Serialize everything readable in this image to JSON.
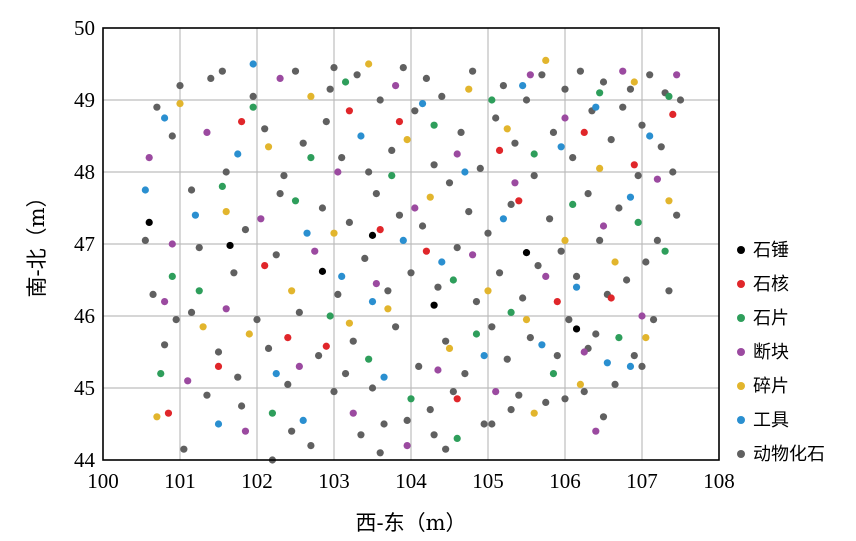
{
  "chart_data": {
    "type": "scatter",
    "title": "",
    "xlabel": "西-东（m）",
    "ylabel": "南-北（m）",
    "xlim": [
      100,
      108
    ],
    "ylim": [
      44,
      50
    ],
    "x_ticks": [
      "100",
      "101",
      "102",
      "103",
      "104",
      "105",
      "106",
      "107",
      "108"
    ],
    "y_ticks": [
      "44",
      "45",
      "46",
      "47",
      "48",
      "49",
      "50"
    ],
    "grid": true,
    "legend_position": "right",
    "series": [
      {
        "name": "石锤",
        "color": "#000000",
        "points": [
          [
            100.6,
            47.3
          ],
          [
            101.65,
            46.98
          ],
          [
            102.85,
            46.62
          ],
          [
            103.5,
            47.12
          ],
          [
            104.3,
            46.15
          ],
          [
            105.5,
            46.88
          ],
          [
            106.15,
            45.82
          ]
        ]
      },
      {
        "name": "石核",
        "color": "#e0262a",
        "points": [
          [
            100.85,
            44.65
          ],
          [
            101.5,
            45.3
          ],
          [
            101.8,
            48.7
          ],
          [
            102.1,
            46.7
          ],
          [
            102.4,
            45.7
          ],
          [
            102.9,
            45.58
          ],
          [
            103.2,
            48.85
          ],
          [
            103.6,
            47.2
          ],
          [
            103.85,
            48.7
          ],
          [
            104.2,
            46.9
          ],
          [
            104.6,
            44.85
          ],
          [
            105.15,
            48.3
          ],
          [
            105.4,
            47.6
          ],
          [
            105.9,
            46.2
          ],
          [
            106.25,
            48.55
          ],
          [
            106.6,
            46.25
          ],
          [
            106.9,
            48.1
          ],
          [
            107.4,
            48.8
          ]
        ]
      },
      {
        "name": "石片",
        "color": "#2e9e5b",
        "points": [
          [
            100.75,
            45.2
          ],
          [
            100.9,
            46.55
          ],
          [
            101.25,
            46.35
          ],
          [
            101.55,
            47.8
          ],
          [
            101.95,
            48.9
          ],
          [
            102.2,
            44.65
          ],
          [
            102.5,
            47.6
          ],
          [
            102.95,
            46.0
          ],
          [
            103.15,
            49.25
          ],
          [
            103.45,
            45.4
          ],
          [
            103.75,
            47.95
          ],
          [
            104.0,
            44.85
          ],
          [
            104.3,
            48.65
          ],
          [
            104.55,
            46.5
          ],
          [
            104.85,
            45.75
          ],
          [
            105.05,
            49.0
          ],
          [
            105.3,
            46.05
          ],
          [
            105.6,
            48.25
          ],
          [
            105.85,
            45.2
          ],
          [
            106.1,
            47.55
          ],
          [
            106.45,
            49.1
          ],
          [
            106.7,
            45.7
          ],
          [
            106.95,
            47.3
          ],
          [
            107.3,
            46.9
          ],
          [
            107.35,
            49.05
          ],
          [
            104.6,
            44.3
          ],
          [
            102.7,
            48.2
          ]
        ]
      },
      {
        "name": "断块",
        "color": "#9b4aa0",
        "points": [
          [
            100.6,
            48.2
          ],
          [
            100.9,
            47.0
          ],
          [
            101.1,
            45.1
          ],
          [
            101.35,
            48.55
          ],
          [
            101.6,
            46.1
          ],
          [
            101.85,
            44.4
          ],
          [
            102.05,
            47.35
          ],
          [
            102.3,
            49.3
          ],
          [
            102.55,
            45.3
          ],
          [
            102.75,
            46.9
          ],
          [
            103.05,
            48.0
          ],
          [
            103.25,
            44.65
          ],
          [
            103.55,
            46.45
          ],
          [
            103.8,
            49.2
          ],
          [
            104.05,
            47.5
          ],
          [
            104.35,
            45.25
          ],
          [
            104.6,
            48.25
          ],
          [
            104.8,
            46.85
          ],
          [
            105.1,
            44.95
          ],
          [
            105.35,
            47.85
          ],
          [
            105.55,
            49.35
          ],
          [
            105.75,
            46.55
          ],
          [
            106.0,
            48.75
          ],
          [
            106.25,
            45.5
          ],
          [
            106.5,
            47.25
          ],
          [
            106.75,
            49.4
          ],
          [
            107.0,
            46.0
          ],
          [
            107.2,
            47.9
          ],
          [
            107.45,
            49.35
          ],
          [
            106.4,
            44.4
          ],
          [
            103.95,
            44.2
          ],
          [
            100.8,
            46.2
          ]
        ]
      },
      {
        "name": "碎片",
        "color": "#e2b52d",
        "points": [
          [
            100.7,
            44.6
          ],
          [
            101.0,
            48.95
          ],
          [
            101.3,
            45.85
          ],
          [
            101.6,
            47.45
          ],
          [
            101.9,
            45.75
          ],
          [
            102.15,
            48.35
          ],
          [
            102.45,
            46.35
          ],
          [
            102.7,
            49.05
          ],
          [
            103.0,
            47.15
          ],
          [
            103.2,
            45.9
          ],
          [
            103.45,
            49.5
          ],
          [
            103.7,
            46.1
          ],
          [
            103.95,
            48.45
          ],
          [
            104.25,
            47.65
          ],
          [
            104.5,
            45.55
          ],
          [
            104.75,
            49.15
          ],
          [
            105.0,
            46.35
          ],
          [
            105.25,
            48.6
          ],
          [
            105.5,
            45.95
          ],
          [
            105.75,
            49.55
          ],
          [
            106.0,
            47.05
          ],
          [
            106.2,
            45.05
          ],
          [
            106.45,
            48.05
          ],
          [
            106.65,
            46.75
          ],
          [
            106.9,
            49.25
          ],
          [
            107.05,
            45.7
          ],
          [
            107.35,
            47.6
          ],
          [
            105.6,
            44.65
          ]
        ]
      },
      {
        "name": "工具",
        "color": "#2a8fd0",
        "points": [
          [
            100.55,
            47.75
          ],
          [
            100.8,
            48.75
          ],
          [
            101.2,
            47.4
          ],
          [
            101.5,
            44.5
          ],
          [
            101.75,
            48.25
          ],
          [
            101.95,
            49.5
          ],
          [
            102.25,
            45.2
          ],
          [
            102.6,
            44.55
          ],
          [
            102.65,
            47.15
          ],
          [
            103.1,
            46.55
          ],
          [
            103.35,
            48.5
          ],
          [
            103.65,
            45.15
          ],
          [
            103.9,
            47.05
          ],
          [
            104.15,
            48.95
          ],
          [
            104.4,
            46.75
          ],
          [
            104.7,
            48.0
          ],
          [
            104.95,
            45.45
          ],
          [
            105.2,
            47.35
          ],
          [
            105.45,
            49.2
          ],
          [
            105.7,
            45.6
          ],
          [
            105.95,
            48.35
          ],
          [
            106.15,
            46.4
          ],
          [
            106.4,
            48.9
          ],
          [
            106.55,
            45.35
          ],
          [
            106.85,
            47.65
          ],
          [
            107.1,
            48.5
          ],
          [
            106.85,
            45.3
          ],
          [
            103.5,
            46.2
          ]
        ]
      },
      {
        "name": "动物化石",
        "color": "#606060",
        "points": [
          [
            100.55,
            47.05
          ],
          [
            100.65,
            46.3
          ],
          [
            100.8,
            45.6
          ],
          [
            100.9,
            48.5
          ],
          [
            101.0,
            49.2
          ],
          [
            101.05,
            44.15
          ],
          [
            101.15,
            47.75
          ],
          [
            101.25,
            46.95
          ],
          [
            101.35,
            44.9
          ],
          [
            101.4,
            49.3
          ],
          [
            101.5,
            45.5
          ],
          [
            101.6,
            48.0
          ],
          [
            101.7,
            46.6
          ],
          [
            101.8,
            44.75
          ],
          [
            101.85,
            47.2
          ],
          [
            101.95,
            49.05
          ],
          [
            102.0,
            45.95
          ],
          [
            102.1,
            48.6
          ],
          [
            102.2,
            44.0
          ],
          [
            102.25,
            46.85
          ],
          [
            102.35,
            47.95
          ],
          [
            102.4,
            45.05
          ],
          [
            102.5,
            49.4
          ],
          [
            102.55,
            46.05
          ],
          [
            102.6,
            48.4
          ],
          [
            102.7,
            44.2
          ],
          [
            102.8,
            45.45
          ],
          [
            102.85,
            47.5
          ],
          [
            102.95,
            49.15
          ],
          [
            103.0,
            44.95
          ],
          [
            103.05,
            46.3
          ],
          [
            103.1,
            48.2
          ],
          [
            103.2,
            47.3
          ],
          [
            103.25,
            45.65
          ],
          [
            103.3,
            49.35
          ],
          [
            103.35,
            44.35
          ],
          [
            103.4,
            46.8
          ],
          [
            103.45,
            48.0
          ],
          [
            103.5,
            45.0
          ],
          [
            103.55,
            47.7
          ],
          [
            103.6,
            49.0
          ],
          [
            103.65,
            44.5
          ],
          [
            103.7,
            46.35
          ],
          [
            103.75,
            48.3
          ],
          [
            103.8,
            45.85
          ],
          [
            103.85,
            47.4
          ],
          [
            103.9,
            49.45
          ],
          [
            103.95,
            44.55
          ],
          [
            104.0,
            46.6
          ],
          [
            104.05,
            48.85
          ],
          [
            104.1,
            45.3
          ],
          [
            104.15,
            47.25
          ],
          [
            104.2,
            49.3
          ],
          [
            104.25,
            44.7
          ],
          [
            104.3,
            48.1
          ],
          [
            104.35,
            46.4
          ],
          [
            104.4,
            49.05
          ],
          [
            104.45,
            45.65
          ],
          [
            104.5,
            47.85
          ],
          [
            104.55,
            44.95
          ],
          [
            104.6,
            46.95
          ],
          [
            104.65,
            48.55
          ],
          [
            104.7,
            45.2
          ],
          [
            104.75,
            47.45
          ],
          [
            104.8,
            49.4
          ],
          [
            104.85,
            46.2
          ],
          [
            104.9,
            48.05
          ],
          [
            104.95,
            44.5
          ],
          [
            105.0,
            47.15
          ],
          [
            105.05,
            45.85
          ],
          [
            105.1,
            48.75
          ],
          [
            105.15,
            46.6
          ],
          [
            105.2,
            49.2
          ],
          [
            105.25,
            45.4
          ],
          [
            105.3,
            47.55
          ],
          [
            105.35,
            48.4
          ],
          [
            105.4,
            44.9
          ],
          [
            105.45,
            46.25
          ],
          [
            105.5,
            49.0
          ],
          [
            105.55,
            45.7
          ],
          [
            105.6,
            47.95
          ],
          [
            105.65,
            46.7
          ],
          [
            105.7,
            49.35
          ],
          [
            105.75,
            44.8
          ],
          [
            105.8,
            47.35
          ],
          [
            105.85,
            48.55
          ],
          [
            105.9,
            45.45
          ],
          [
            105.95,
            46.9
          ],
          [
            106.0,
            49.15
          ],
          [
            106.05,
            45.95
          ],
          [
            106.1,
            48.2
          ],
          [
            106.15,
            46.55
          ],
          [
            106.2,
            49.4
          ],
          [
            106.25,
            44.95
          ],
          [
            106.3,
            47.7
          ],
          [
            106.35,
            48.85
          ],
          [
            106.4,
            45.75
          ],
          [
            106.45,
            47.05
          ],
          [
            106.5,
            49.25
          ],
          [
            106.55,
            46.3
          ],
          [
            106.6,
            48.45
          ],
          [
            106.65,
            45.05
          ],
          [
            106.7,
            47.5
          ],
          [
            106.75,
            48.9
          ],
          [
            106.8,
            46.5
          ],
          [
            106.85,
            49.15
          ],
          [
            106.9,
            45.45
          ],
          [
            106.95,
            47.95
          ],
          [
            107.0,
            48.65
          ],
          [
            107.05,
            46.75
          ],
          [
            107.1,
            49.35
          ],
          [
            107.15,
            45.95
          ],
          [
            107.2,
            47.05
          ],
          [
            107.25,
            48.35
          ],
          [
            107.3,
            49.1
          ],
          [
            107.35,
            46.35
          ],
          [
            107.4,
            48.0
          ],
          [
            107.45,
            47.4
          ],
          [
            107.5,
            49.0
          ],
          [
            101.15,
            46.05
          ],
          [
            101.75,
            45.15
          ],
          [
            102.15,
            45.55
          ],
          [
            102.3,
            47.7
          ],
          [
            102.9,
            48.7
          ],
          [
            103.15,
            45.2
          ],
          [
            103.6,
            44.1
          ],
          [
            104.3,
            44.35
          ],
          [
            105.3,
            44.7
          ],
          [
            106.3,
            45.55
          ],
          [
            100.95,
            45.95
          ],
          [
            101.55,
            49.4
          ],
          [
            102.45,
            44.4
          ],
          [
            103.0,
            49.45
          ],
          [
            104.45,
            44.15
          ],
          [
            105.05,
            44.5
          ],
          [
            106.0,
            44.85
          ],
          [
            107.0,
            45.3
          ],
          [
            106.5,
            44.6
          ],
          [
            100.7,
            48.9
          ]
        ]
      }
    ]
  }
}
